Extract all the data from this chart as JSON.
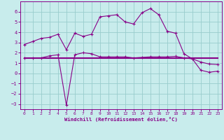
{
  "xlabel": "Windchill (Refroidissement éolien,°C)",
  "bg_color": "#c8ecec",
  "line_color": "#880088",
  "grid_color": "#99cccc",
  "xlim": [
    -0.5,
    23.5
  ],
  "ylim": [
    -3.5,
    7.0
  ],
  "xticks": [
    0,
    1,
    2,
    3,
    4,
    5,
    6,
    7,
    8,
    9,
    10,
    11,
    12,
    13,
    14,
    15,
    16,
    17,
    18,
    19,
    20,
    21,
    22,
    23
  ],
  "yticks": [
    -3,
    -2,
    -1,
    0,
    1,
    2,
    3,
    4,
    5,
    6
  ],
  "curve1_x": [
    0,
    1,
    2,
    3,
    4,
    5,
    6,
    7,
    8,
    9,
    10,
    11,
    12,
    13,
    14,
    15,
    16,
    17,
    18,
    19,
    20,
    21,
    22,
    23
  ],
  "curve1_y": [
    2.8,
    3.1,
    3.4,
    3.5,
    3.8,
    2.3,
    3.9,
    3.6,
    3.8,
    5.5,
    5.6,
    5.7,
    5.0,
    4.8,
    5.9,
    6.3,
    5.7,
    4.1,
    3.9,
    1.9,
    1.4,
    0.3,
    0.1,
    0.2
  ],
  "curve2_x": [
    0,
    1,
    2,
    3,
    4,
    5,
    6,
    7,
    8,
    9,
    10,
    11,
    12,
    13,
    14,
    15,
    16,
    17,
    18,
    19,
    20,
    21,
    22,
    23
  ],
  "curve2_y": [
    1.5,
    1.5,
    1.5,
    1.7,
    1.8,
    -3.1,
    1.8,
    2.0,
    1.9,
    1.6,
    1.6,
    1.6,
    1.6,
    1.5,
    1.55,
    1.6,
    1.6,
    1.6,
    1.65,
    1.5,
    1.4,
    1.1,
    0.9,
    0.85
  ],
  "curve3_x": [
    0,
    23
  ],
  "curve3_y": [
    1.5,
    1.5
  ]
}
